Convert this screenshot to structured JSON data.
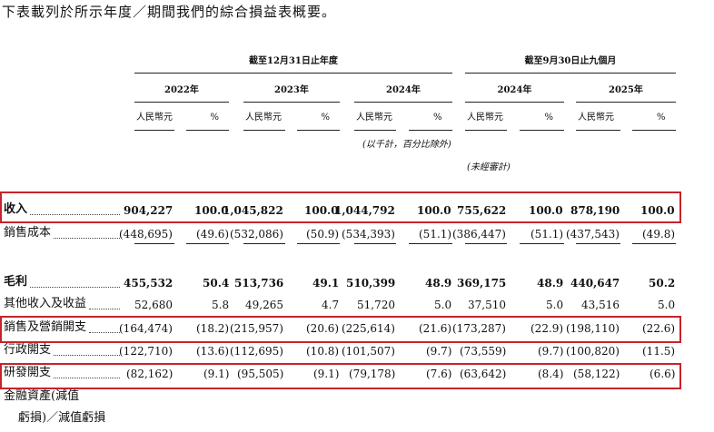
{
  "intro": "下表載列於所示年度／期間我們的綜合損益表概要。",
  "table": {
    "period_headers": [
      "截至12月31日止年度",
      "截至9月30日止九個月"
    ],
    "years": [
      "2022年",
      "2023年",
      "2024年",
      "2024年",
      "2025年"
    ],
    "unit_headers": [
      "人民幣元",
      "%",
      "人民幣元",
      "%",
      "人民幣元",
      "%",
      "人民幣元",
      "%",
      "人民幣元",
      "%"
    ],
    "notes": [
      "(以千計，百分比除外)",
      "(未經審計)"
    ],
    "rows": [
      {
        "label": "收入",
        "cells": [
          "904,227",
          "100.0",
          "1,045,822",
          "100.0",
          "1,044,792",
          "100.0",
          "755,622",
          "100.0",
          "878,190",
          "100.0"
        ]
      },
      {
        "label": "銷售成本",
        "cells": [
          "(448,695)",
          "(49.6)",
          "(532,086)",
          "(50.9)",
          "(534,393)",
          "(51.1)",
          "(386,447)",
          "(51.1)",
          "(437,543)",
          "(49.8)"
        ]
      },
      {
        "label": "毛利",
        "cells": [
          "455,532",
          "50.4",
          "513,736",
          "49.1",
          "510,399",
          "48.9",
          "369,175",
          "48.9",
          "440,647",
          "50.2"
        ]
      },
      {
        "label": "其他收入及收益",
        "cells": [
          "52,680",
          "5.8",
          "49,265",
          "4.7",
          "51,720",
          "5.0",
          "37,510",
          "5.0",
          "43,516",
          "5.0"
        ]
      },
      {
        "label": "銷售及營銷開支",
        "cells": [
          "(164,474)",
          "(18.2)",
          "(215,957)",
          "(20.6)",
          "(225,614)",
          "(21.6)",
          "(173,287)",
          "(22.9)",
          "(198,110)",
          "(22.6)"
        ]
      },
      {
        "label": "行政開支",
        "cells": [
          "(122,710)",
          "(13.6)",
          "(112,695)",
          "(10.8)",
          "(101,507)",
          "(9.7)",
          "(73,559)",
          "(9.7)",
          "(100,820)",
          "(11.5)"
        ]
      },
      {
        "label": "研發開支",
        "cells": [
          "(82,162)",
          "(9.1)",
          "(95,505)",
          "(9.1)",
          "(79,178)",
          "(7.6)",
          "(63,642)",
          "(8.4)",
          "(58,122)",
          "(6.6)"
        ]
      }
    ],
    "last_label_lines": [
      "金融資產(減值",
      "虧損)／減值虧損"
    ]
  }
}
